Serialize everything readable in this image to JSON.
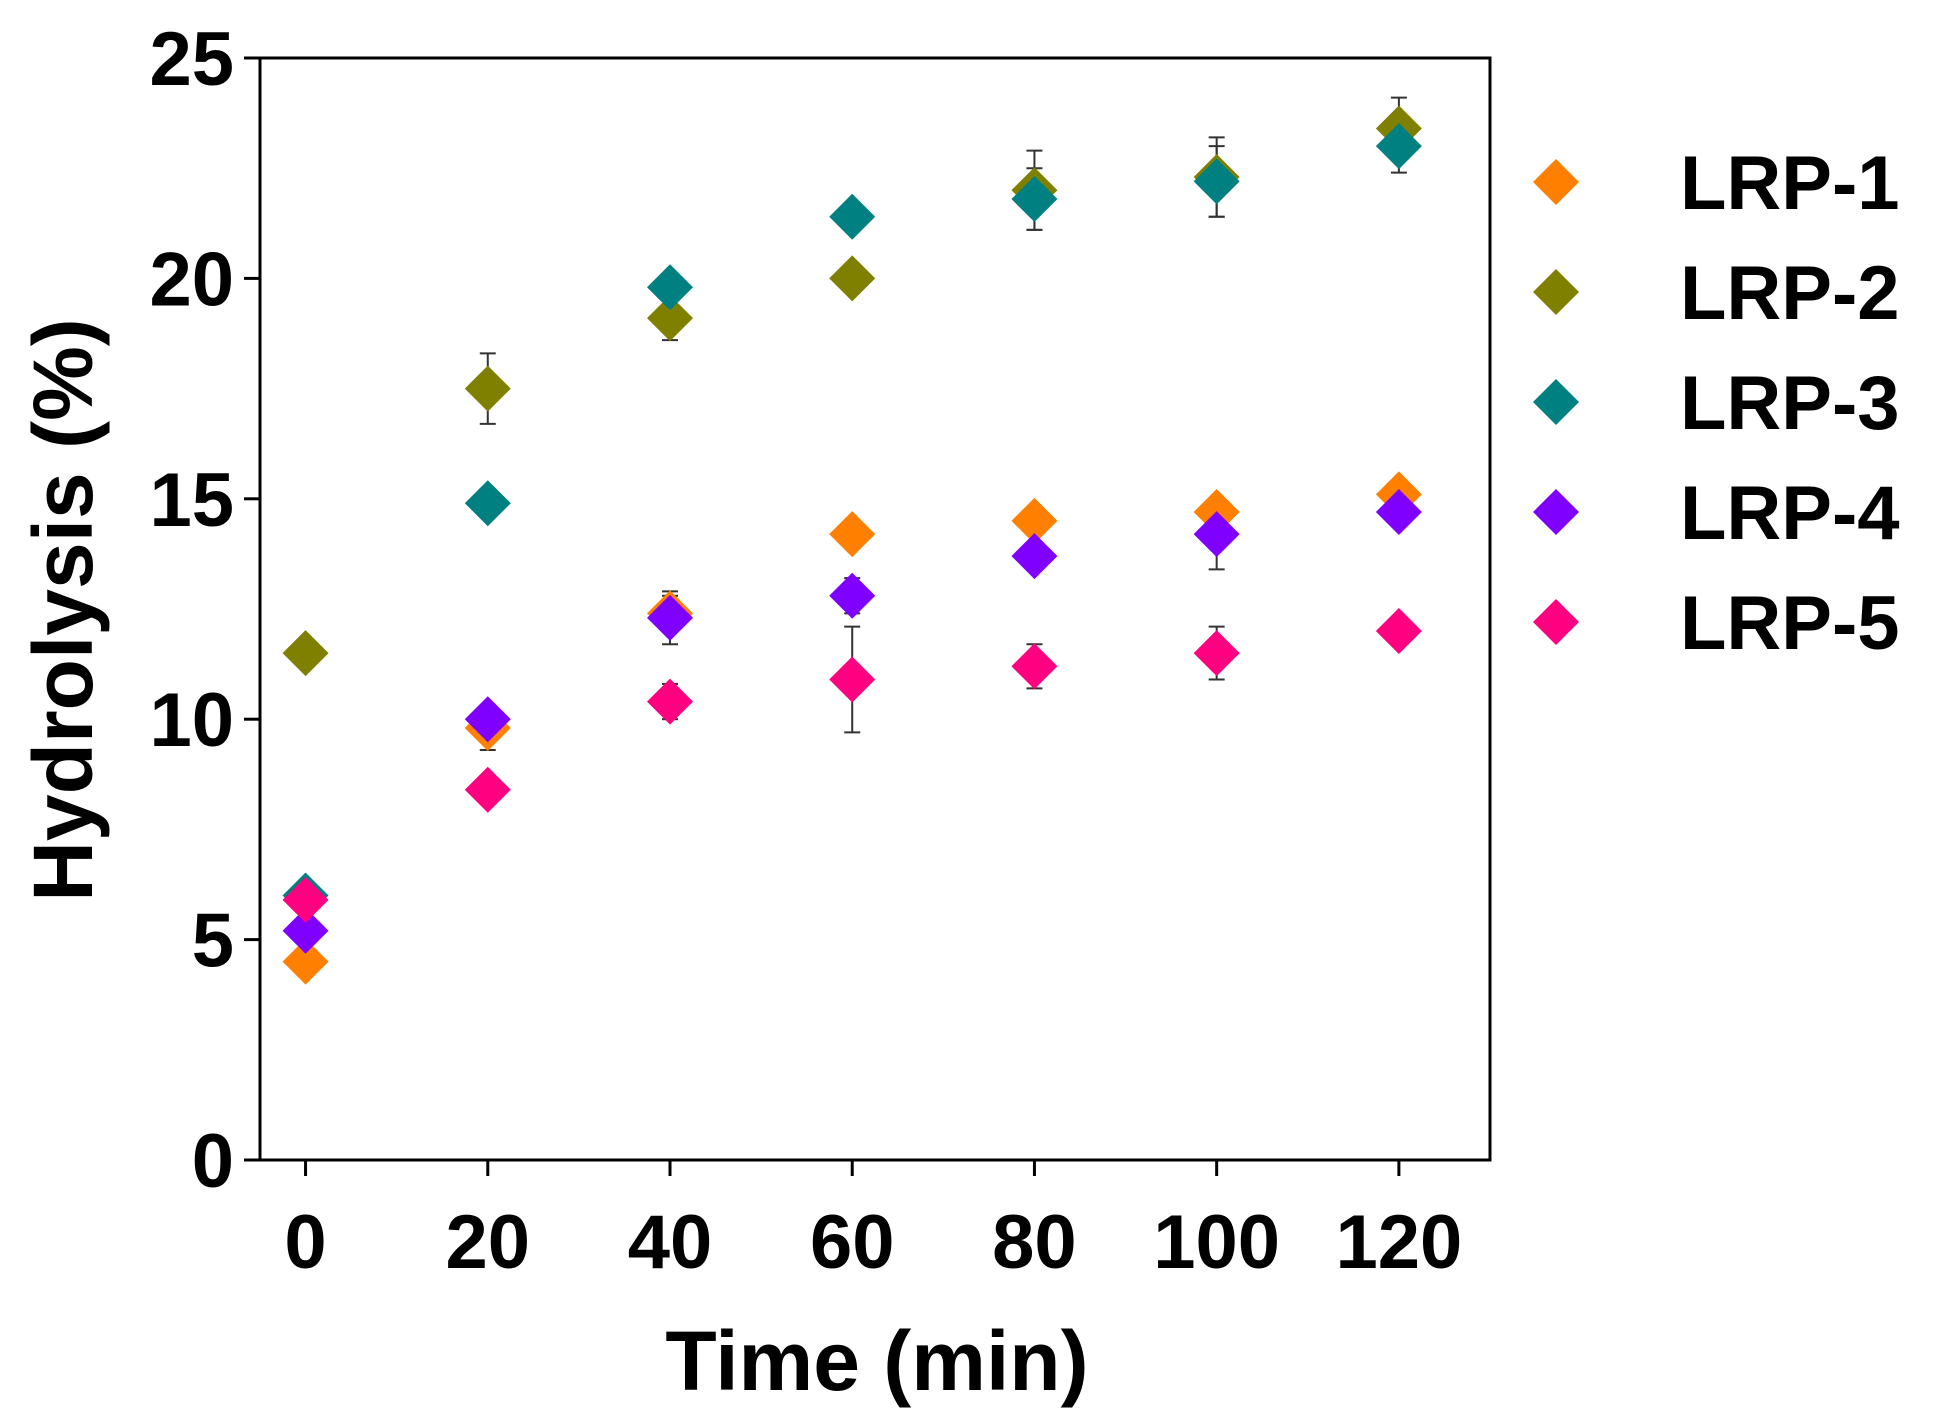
{
  "chart_data": {
    "type": "scatter",
    "title": "",
    "xlabel": "Time (min)",
    "ylabel": "Hydrolysis (%)",
    "xlim": [
      -5,
      130
    ],
    "ylim": [
      0,
      25
    ],
    "x": [
      0,
      20,
      40,
      60,
      80,
      100,
      120
    ],
    "xticks": [
      "0",
      "20",
      "40",
      "60",
      "80",
      "100",
      "120"
    ],
    "yticks": [
      "0",
      "5",
      "10",
      "15",
      "20",
      "25"
    ],
    "legend_position": "right",
    "series": [
      {
        "name": "LRP-1",
        "color": "#FF8000",
        "values": [
          4.5,
          9.8,
          12.4,
          14.2,
          14.5,
          14.7,
          15.1
        ],
        "errors": [
          0.3,
          0.5,
          0.4,
          0.2,
          0.3,
          0.3,
          0.3
        ]
      },
      {
        "name": "LRP-2",
        "color": "#808000",
        "values": [
          11.5,
          17.5,
          19.1,
          20.0,
          22.0,
          22.3,
          23.4
        ],
        "errors": [
          0.2,
          0.8,
          0.5,
          0.3,
          0.9,
          0.9,
          0.7
        ]
      },
      {
        "name": "LRP-3",
        "color": "#008080",
        "values": [
          6.0,
          14.9,
          19.8,
          21.4,
          21.8,
          22.2,
          23.0
        ],
        "errors": [
          0.2,
          0.1,
          0.3,
          0.3,
          0.7,
          0.8,
          0.6
        ]
      },
      {
        "name": "LRP-4",
        "color": "#8000FF",
        "values": [
          5.2,
          10.0,
          12.3,
          12.8,
          13.7,
          14.2,
          14.7
        ],
        "errors": [
          0.2,
          0.3,
          0.6,
          0.4,
          0.3,
          0.8,
          0.3
        ]
      },
      {
        "name": "LRP-5",
        "color": "#FF0080",
        "values": [
          5.9,
          8.4,
          10.4,
          10.9,
          11.2,
          11.5,
          12.0
        ],
        "errors": [
          0.3,
          0.3,
          0.4,
          1.2,
          0.5,
          0.6,
          0.3
        ]
      }
    ]
  }
}
